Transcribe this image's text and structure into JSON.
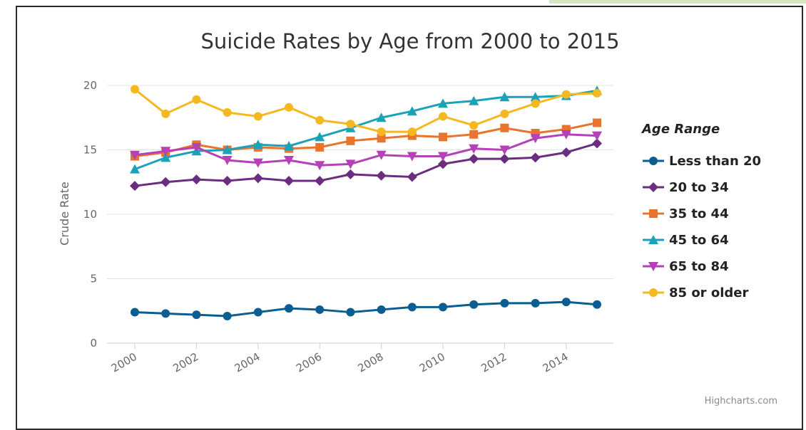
{
  "chart_data": {
    "type": "line",
    "title": "Suicide Rates by Age from 2000 to 2015",
    "xlabel": "",
    "ylabel": "Crude Rate",
    "x": [
      2000,
      2001,
      2002,
      2003,
      2004,
      2005,
      2006,
      2007,
      2008,
      2009,
      2010,
      2011,
      2012,
      2013,
      2014,
      2015
    ],
    "x_tick_labels": [
      "2000",
      "2002",
      "2004",
      "2006",
      "2008",
      "2010",
      "2012",
      "2014"
    ],
    "y_tick_labels": [
      "0",
      "5",
      "10",
      "15",
      "20"
    ],
    "ylim": [
      0,
      20
    ],
    "grid": "horizontal",
    "legend_title": "Age Range",
    "legend_position": "right",
    "credits": "Highcharts.com",
    "series": [
      {
        "name": "Less than 20",
        "color": "#0b5e91",
        "marker": "circle",
        "values": [
          2.4,
          2.3,
          2.2,
          2.1,
          2.4,
          2.7,
          2.6,
          2.4,
          2.6,
          2.8,
          2.8,
          3.0,
          3.1,
          3.1,
          3.2,
          3.0
        ]
      },
      {
        "name": "20 to 34",
        "color": "#6b2d80",
        "marker": "diamond",
        "values": [
          12.2,
          12.5,
          12.7,
          12.6,
          12.8,
          12.6,
          12.6,
          13.1,
          13.0,
          12.9,
          13.9,
          14.3,
          14.3,
          14.4,
          14.8,
          15.5
        ]
      },
      {
        "name": "35 to 44",
        "color": "#e8742e",
        "marker": "square",
        "values": [
          14.5,
          14.8,
          15.4,
          15.0,
          15.2,
          15.1,
          15.2,
          15.7,
          15.9,
          16.1,
          16.0,
          16.2,
          16.7,
          16.3,
          16.6,
          17.1
        ]
      },
      {
        "name": "45 to 64",
        "color": "#1aa3b8",
        "marker": "triangle",
        "values": [
          13.5,
          14.4,
          14.9,
          15.0,
          15.4,
          15.3,
          16.0,
          16.7,
          17.5,
          18.0,
          18.6,
          18.8,
          19.1,
          19.1,
          19.2,
          19.6
        ]
      },
      {
        "name": "65 to 84",
        "color": "#b441b8",
        "marker": "triangle-down",
        "values": [
          14.6,
          14.9,
          15.2,
          14.2,
          14.0,
          14.2,
          13.8,
          13.9,
          14.6,
          14.5,
          14.5,
          15.1,
          15.0,
          15.9,
          16.2,
          16.1
        ]
      },
      {
        "name": "85 or older",
        "color": "#f5b820",
        "marker": "circle",
        "values": [
          19.7,
          17.8,
          18.9,
          17.9,
          17.6,
          18.3,
          17.3,
          17.0,
          16.4,
          16.4,
          17.6,
          16.9,
          17.8,
          18.6,
          19.3,
          19.4
        ]
      }
    ]
  }
}
